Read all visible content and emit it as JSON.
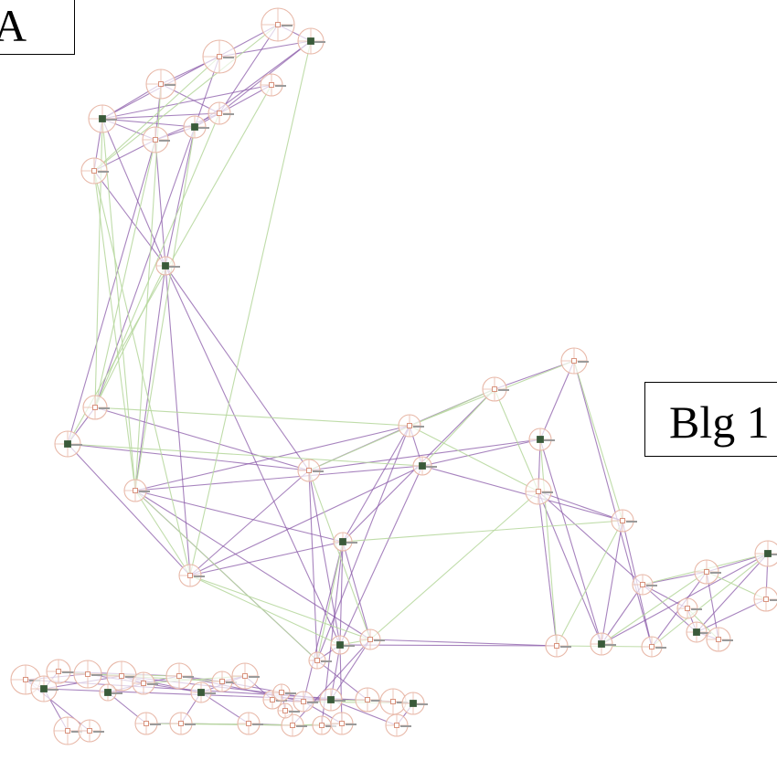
{
  "labels": {
    "panel": "A",
    "building": "Blg 1"
  },
  "colors": {
    "edge_primary": "#8a5aa8",
    "edge_secondary": "#b8d8a0",
    "node_ring": "#e8b8a8",
    "node_router": "#3a5a3a",
    "node_host": "#d07a60"
  }
}
